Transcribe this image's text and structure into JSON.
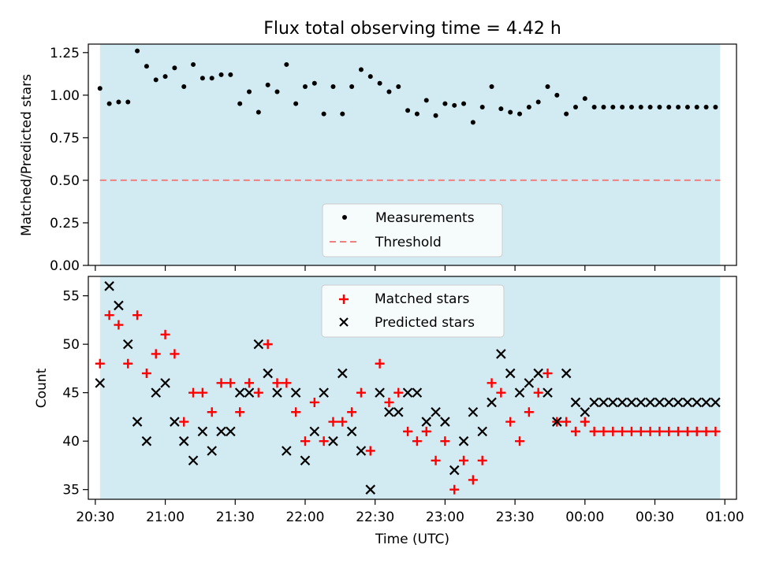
{
  "figure": {
    "title": "Flux total observing time = 4.42 h",
    "xlabel": "Time (UTC)"
  },
  "colors": {
    "band": "#add8e6",
    "threshold": "#f08080",
    "matched": "#ff0000",
    "predicted": "#000000",
    "measurements": "#000000"
  },
  "chart_data": [
    {
      "type": "scatter",
      "panel": "top",
      "ylabel": "Matched/Predicted stars",
      "ylim": [
        0,
        1.3
      ],
      "yticks": [
        "0.00",
        "0.25",
        "0.50",
        "0.75",
        "1.00",
        "1.25"
      ],
      "grid": false,
      "legend_position": "lower center",
      "shaded_interval": [
        "20:32",
        "00:58"
      ],
      "threshold": {
        "name": "Threshold",
        "value": 0.5,
        "style": "dashed"
      },
      "series": [
        {
          "name": "Measurements",
          "marker": "dot",
          "x": [
            "20:32",
            "20:36",
            "20:40",
            "20:44",
            "20:48",
            "20:52",
            "20:56",
            "21:00",
            "21:04",
            "21:08",
            "21:12",
            "21:16",
            "21:20",
            "21:24",
            "21:28",
            "21:32",
            "21:36",
            "21:40",
            "21:44",
            "21:48",
            "21:52",
            "21:56",
            "22:00",
            "22:04",
            "22:08",
            "22:12",
            "22:16",
            "22:20",
            "22:24",
            "22:28",
            "22:32",
            "22:36",
            "22:40",
            "22:44",
            "22:48",
            "22:52",
            "22:56",
            "23:00",
            "23:04",
            "23:08",
            "23:12",
            "23:16",
            "23:20",
            "23:24",
            "23:28",
            "23:32",
            "23:36",
            "23:40",
            "23:44",
            "23:48",
            "23:52",
            "23:56",
            "00:00",
            "00:04",
            "00:08",
            "00:12",
            "00:16",
            "00:20",
            "00:24",
            "00:28",
            "00:32",
            "00:36",
            "00:40",
            "00:44",
            "00:48",
            "00:52",
            "00:56"
          ],
          "y": [
            1.04,
            0.95,
            0.96,
            0.96,
            1.26,
            1.17,
            1.09,
            1.11,
            1.16,
            1.05,
            1.18,
            1.1,
            1.1,
            1.12,
            1.12,
            0.95,
            1.02,
            0.9,
            1.06,
            1.02,
            1.18,
            0.95,
            1.05,
            1.07,
            0.89,
            1.05,
            0.89,
            1.05,
            1.15,
            1.11,
            1.07,
            1.02,
            1.05,
            0.91,
            0.89,
            0.97,
            0.88,
            0.95,
            0.94,
            0.95,
            0.84,
            0.93,
            1.05,
            0.92,
            0.9,
            0.89,
            0.93,
            0.96,
            1.05,
            1.0,
            0.89,
            0.93,
            0.98,
            0.93,
            0.93,
            0.93,
            0.93,
            0.93,
            0.93,
            0.93,
            0.93,
            0.93,
            0.93,
            0.93,
            0.93,
            0.93,
            0.93
          ]
        }
      ]
    },
    {
      "type": "scatter",
      "panel": "bottom",
      "ylabel": "Count",
      "ylim": [
        34,
        57
      ],
      "yticks": [
        "35",
        "40",
        "45",
        "50",
        "55"
      ],
      "xlim": [
        "20:27",
        "01:05"
      ],
      "xticks": [
        "20:30",
        "21:00",
        "21:30",
        "22:00",
        "22:30",
        "23:00",
        "23:30",
        "00:00",
        "00:30",
        "01:00"
      ],
      "grid": false,
      "legend_position": "upper center",
      "shaded_interval": [
        "20:32",
        "00:58"
      ],
      "series": [
        {
          "name": "Matched stars",
          "marker": "plus",
          "x": [
            "20:32",
            "20:36",
            "20:40",
            "20:44",
            "20:48",
            "20:52",
            "20:56",
            "21:00",
            "21:04",
            "21:08",
            "21:12",
            "21:16",
            "21:20",
            "21:24",
            "21:28",
            "21:32",
            "21:36",
            "21:40",
            "21:44",
            "21:48",
            "21:52",
            "21:56",
            "22:00",
            "22:04",
            "22:08",
            "22:12",
            "22:16",
            "22:20",
            "22:24",
            "22:28",
            "22:32",
            "22:36",
            "22:40",
            "22:44",
            "22:48",
            "22:52",
            "22:56",
            "23:00",
            "23:04",
            "23:08",
            "23:12",
            "23:16",
            "23:20",
            "23:24",
            "23:28",
            "23:32",
            "23:36",
            "23:40",
            "23:44",
            "23:48",
            "23:52",
            "23:56",
            "00:00",
            "00:04",
            "00:08",
            "00:12",
            "00:16",
            "00:20",
            "00:24",
            "00:28",
            "00:32",
            "00:36",
            "00:40",
            "00:44",
            "00:48",
            "00:52",
            "00:56"
          ],
          "y": [
            48,
            53,
            52,
            48,
            53,
            47,
            49,
            51,
            49,
            42,
            45,
            45,
            43,
            46,
            46,
            43,
            46,
            45,
            50,
            46,
            46,
            43,
            40,
            44,
            40,
            42,
            42,
            43,
            45,
            39,
            48,
            44,
            45,
            41,
            40,
            41,
            38,
            40,
            35,
            38,
            36,
            38,
            46,
            45,
            42,
            40,
            43,
            45,
            47,
            42,
            42,
            41,
            42,
            41,
            41,
            41,
            41,
            41,
            41,
            41,
            41,
            41,
            41,
            41,
            41,
            41,
            41
          ]
        },
        {
          "name": "Predicted stars",
          "marker": "x",
          "x": [
            "20:32",
            "20:36",
            "20:40",
            "20:44",
            "20:48",
            "20:52",
            "20:56",
            "21:00",
            "21:04",
            "21:08",
            "21:12",
            "21:16",
            "21:20",
            "21:24",
            "21:28",
            "21:32",
            "21:36",
            "21:40",
            "21:44",
            "21:48",
            "21:52",
            "21:56",
            "22:00",
            "22:04",
            "22:08",
            "22:12",
            "22:16",
            "22:20",
            "22:24",
            "22:28",
            "22:32",
            "22:36",
            "22:40",
            "22:44",
            "22:48",
            "22:52",
            "22:56",
            "23:00",
            "23:04",
            "23:08",
            "23:12",
            "23:16",
            "23:20",
            "23:24",
            "23:28",
            "23:32",
            "23:36",
            "23:40",
            "23:44",
            "23:48",
            "23:52",
            "23:56",
            "00:00",
            "00:04",
            "00:08",
            "00:12",
            "00:16",
            "00:20",
            "00:24",
            "00:28",
            "00:32",
            "00:36",
            "00:40",
            "00:44",
            "00:48",
            "00:52",
            "00:56"
          ],
          "y": [
            46,
            56,
            54,
            50,
            42,
            40,
            45,
            46,
            42,
            40,
            38,
            41,
            39,
            41,
            41,
            45,
            45,
            50,
            47,
            45,
            39,
            45,
            38,
            41,
            45,
            40,
            47,
            41,
            39,
            35,
            45,
            43,
            43,
            45,
            45,
            42,
            43,
            42,
            37,
            40,
            43,
            41,
            44,
            49,
            47,
            45,
            46,
            47,
            45,
            42,
            47,
            44,
            43,
            44,
            44,
            44,
            44,
            44,
            44,
            44,
            44,
            44,
            44,
            44,
            44,
            44,
            44
          ]
        }
      ]
    }
  ]
}
